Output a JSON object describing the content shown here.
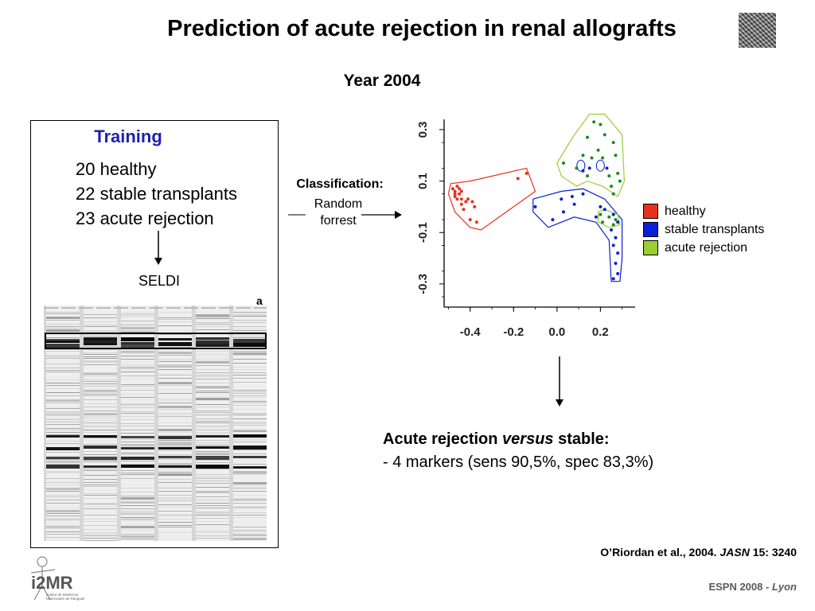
{
  "slide": {
    "title": "Prediction of acute rejection in renal allografts",
    "subtitle": "Year 2004"
  },
  "training": {
    "heading": "Training",
    "lines": [
      "20 healthy",
      "22 stable transplants",
      "23 acute rejection"
    ],
    "method": "SELDI",
    "gel_label": "a"
  },
  "classification": {
    "label": "Classification:",
    "method_line1": "Random",
    "method_line2": "forrest"
  },
  "chart_data": {
    "type": "scatter",
    "title": "",
    "xlabel": "",
    "ylabel": "",
    "x_ticks": [
      "-0.4",
      "-0.2",
      "0.0",
      "0.2"
    ],
    "y_ticks": [
      "0.3",
      "0.1",
      "-0.1",
      "-0.3"
    ],
    "xlim": [
      -0.52,
      0.36
    ],
    "ylim": [
      -0.39,
      0.34
    ],
    "grid": false,
    "legend_position": "right",
    "series": [
      {
        "name": "healthy",
        "color": "#e8311c",
        "points": [
          [
            -0.48,
            0.07
          ],
          [
            -0.47,
            0.06
          ],
          [
            -0.46,
            0.08
          ],
          [
            -0.45,
            0.07
          ],
          [
            -0.47,
            0.05
          ],
          [
            -0.45,
            0.05
          ],
          [
            -0.44,
            0.06
          ],
          [
            -0.46,
            0.03
          ],
          [
            -0.44,
            0.03
          ],
          [
            -0.42,
            0.02
          ],
          [
            -0.44,
            0.01
          ],
          [
            -0.41,
            0.03
          ],
          [
            -0.39,
            0.02
          ],
          [
            -0.43,
            -0.01
          ],
          [
            -0.38,
            0.0
          ],
          [
            -0.4,
            -0.05
          ],
          [
            -0.37,
            -0.06
          ],
          [
            -0.18,
            0.11
          ],
          [
            -0.14,
            0.13
          ],
          [
            -0.47,
            0.04
          ]
        ]
      },
      {
        "name": "stable transplants",
        "color": "#0a1fd6",
        "points": [
          [
            -0.1,
            0.0
          ],
          [
            0.02,
            0.03
          ],
          [
            0.12,
            0.05
          ],
          [
            0.07,
            0.04
          ],
          [
            -0.02,
            -0.05
          ],
          [
            0.08,
            0.01
          ],
          [
            0.2,
            0.0
          ],
          [
            0.22,
            -0.01
          ],
          [
            0.26,
            -0.03
          ],
          [
            0.28,
            -0.06
          ],
          [
            0.25,
            -0.09
          ],
          [
            0.27,
            -0.12
          ],
          [
            0.26,
            -0.15
          ],
          [
            0.28,
            -0.18
          ],
          [
            0.27,
            -0.22
          ],
          [
            0.28,
            -0.26
          ],
          [
            0.26,
            -0.28
          ],
          [
            0.15,
            0.15
          ],
          [
            0.12,
            0.14
          ],
          [
            0.23,
            0.15
          ],
          [
            0.18,
            -0.04
          ],
          [
            0.03,
            -0.02
          ]
        ]
      },
      {
        "name": "acute rejection",
        "color": "#1a8a1a",
        "points": [
          [
            0.17,
            0.33
          ],
          [
            0.2,
            0.32
          ],
          [
            0.14,
            0.27
          ],
          [
            0.22,
            0.28
          ],
          [
            0.26,
            0.25
          ],
          [
            0.12,
            0.2
          ],
          [
            0.16,
            0.19
          ],
          [
            0.19,
            0.22
          ],
          [
            0.21,
            0.19
          ],
          [
            0.27,
            0.2
          ],
          [
            0.03,
            0.17
          ],
          [
            0.09,
            0.15
          ],
          [
            0.28,
            0.13
          ],
          [
            0.24,
            0.12
          ],
          [
            0.29,
            0.1
          ],
          [
            0.25,
            0.08
          ],
          [
            0.26,
            0.05
          ],
          [
            0.14,
            0.12
          ],
          [
            0.2,
            -0.03
          ],
          [
            0.21,
            -0.06
          ],
          [
            0.24,
            -0.04
          ],
          [
            0.26,
            -0.07
          ],
          [
            0.27,
            -0.05
          ]
        ]
      }
    ],
    "hulls": [
      {
        "series": "healthy",
        "polygon": [
          [
            -0.5,
            0.05
          ],
          [
            -0.49,
            0.09
          ],
          [
            -0.4,
            0.1
          ],
          [
            -0.14,
            0.15
          ],
          [
            -0.1,
            0.06
          ],
          [
            -0.35,
            -0.09
          ],
          [
            -0.4,
            -0.08
          ],
          [
            -0.47,
            -0.02
          ]
        ]
      },
      {
        "series": "stable transplants",
        "polygon": [
          [
            -0.11,
            0.03
          ],
          [
            0.02,
            0.06
          ],
          [
            0.12,
            0.07
          ],
          [
            0.22,
            0.03
          ],
          [
            0.3,
            -0.05
          ],
          [
            0.3,
            -0.2
          ],
          [
            0.29,
            -0.29
          ],
          [
            0.25,
            -0.29
          ],
          [
            0.24,
            -0.13
          ],
          [
            0.18,
            -0.06
          ],
          [
            0.08,
            -0.04
          ],
          [
            -0.04,
            -0.08
          ],
          [
            -0.11,
            -0.02
          ]
        ]
      },
      {
        "series": "acute rejection",
        "polygon": [
          [
            0.0,
            0.17
          ],
          [
            0.08,
            0.28
          ],
          [
            0.15,
            0.36
          ],
          [
            0.22,
            0.36
          ],
          [
            0.3,
            0.28
          ],
          [
            0.31,
            0.1
          ],
          [
            0.28,
            0.04
          ],
          [
            0.21,
            0.08
          ],
          [
            0.14,
            0.1
          ],
          [
            0.09,
            0.08
          ],
          [
            0.02,
            0.12
          ]
        ]
      },
      {
        "series": "acute rejection",
        "polygon": [
          [
            0.19,
            -0.02
          ],
          [
            0.22,
            -0.01
          ],
          [
            0.28,
            -0.03
          ],
          [
            0.29,
            -0.07
          ],
          [
            0.24,
            -0.08
          ],
          [
            0.19,
            -0.06
          ]
        ]
      }
    ]
  },
  "result": {
    "title_before": "Acute rejection ",
    "title_italic": "versus",
    "title_after": " stable:",
    "line": "- 4 markers (sens 90,5%, spec 83,3%)"
  },
  "citation": {
    "before": "O’Riordan et al., 2004. ",
    "journal": "JASN",
    "after": " 15: 3240"
  },
  "footer": {
    "before": "ESPN 2008 - ",
    "city": "Lyon"
  },
  "logo": {
    "text": "i2MR",
    "subtext_line1": "Institut de Médecine",
    "subtext_line2": "Moléculaire de Rangueil"
  },
  "legend_colors": {
    "healthy": "#e8311c",
    "stable transplants": "#0a1fd6",
    "acute rejection": "#9acd32"
  }
}
